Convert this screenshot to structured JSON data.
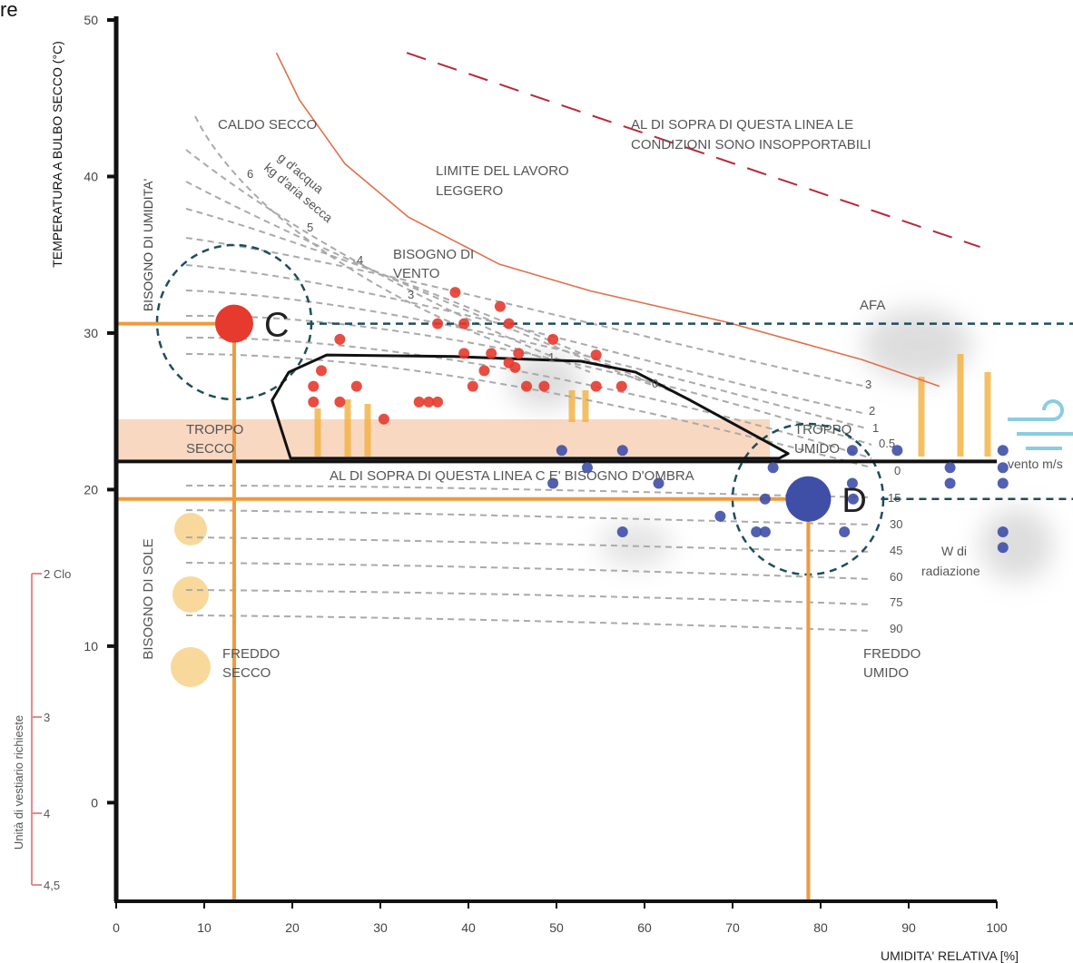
{
  "chart_data": {
    "type": "scatter",
    "y_axis_title": "TEMPERATURA A BULBO SECCO (°C)",
    "x_axis_title": "UMIDITA' RELATIVA [%]",
    "xlim": [
      0,
      100
    ],
    "ylim": [
      -6.3,
      50
    ],
    "xticks": [
      0,
      10,
      20,
      30,
      40,
      50,
      60,
      70,
      80,
      90,
      100
    ],
    "yticks": [
      0,
      10,
      20,
      30,
      40,
      50
    ],
    "series": [
      {
        "color": "#e63a2e",
        "x": [
          38.5,
          43.6,
          36.5,
          39.5,
          44.6,
          25.4,
          49.6,
          39.5,
          42.6,
          45.7,
          54.5,
          44.6,
          45.3,
          23.3,
          41.8,
          22.4,
          27.3,
          46.6,
          48.6,
          54.5,
          57.4,
          40.5,
          22.4,
          25.4,
          34.4,
          35.5,
          36.5,
          30.4
        ],
        "y": [
          32.6,
          31.7,
          30.6,
          30.6,
          30.6,
          29.6,
          29.6,
          28.7,
          28.7,
          28.7,
          28.6,
          28.1,
          27.8,
          27.6,
          27.6,
          26.6,
          26.6,
          26.6,
          26.6,
          26.6,
          26.6,
          26.6,
          25.6,
          25.6,
          25.6,
          25.6,
          25.6,
          24.5
        ]
      },
      {
        "color": "#3f4fa8",
        "x": [
          50.6,
          57.5,
          83.6,
          88.7,
          100.7,
          53.5,
          74.6,
          94.7,
          100.7,
          49.6,
          61.6,
          83.6,
          94.7,
          100.7,
          73.7,
          83.7,
          68.6,
          57.5,
          72.7,
          73.7,
          82.7,
          100.7,
          100.7
        ],
        "y": [
          22.5,
          22.5,
          22.5,
          22.5,
          22.5,
          21.4,
          21.4,
          21.4,
          21.4,
          20.4,
          20.4,
          20.4,
          20.4,
          20.4,
          19.4,
          19.4,
          18.3,
          17.3,
          17.3,
          17.3,
          17.3,
          17.3,
          16.3
        ]
      }
    ],
    "points": [
      {
        "label": "C",
        "x": 13.4,
        "y": 30.6,
        "color": "#e63a2e"
      },
      {
        "label": "D",
        "x": 78.6,
        "y": 19.4,
        "color": "#3f4fa8"
      }
    ],
    "curves": [
      {
        "color": "#e0704a",
        "style": "solid",
        "x": [
          18.2,
          20.8,
          26.0,
          33.2,
          43.5,
          53.8,
          69.3,
          84.7,
          93.5
        ],
        "y": [
          47.9,
          44.9,
          40.8,
          37.4,
          34.4,
          32.7,
          30.7,
          28.3,
          26.6
        ]
      },
      {
        "color": "#b8283c",
        "style": "dashed",
        "x": [
          33.0,
          98.1
        ],
        "y": [
          47.9,
          35.5
        ]
      }
    ],
    "comfort_zone": {
      "color": "#111111",
      "x": [
        19.8,
        17.7,
        19.6,
        23.9,
        38.4,
        52.8,
        59.0,
        65.2,
        72.4,
        76.3,
        75.3
      ],
      "y": [
        22.0,
        25.7,
        27.5,
        28.6,
        28.5,
        28.2,
        27.5,
        25.7,
        23.5,
        22.3,
        22.0
      ]
    },
    "shade_line": 21.8,
    "annotations": [
      "re",
      "CALDO SECCO",
      "AL DI SOPRA DI QUESTA LINEA LE",
      "CONDIZIONI SONO INSOPPORTABILI",
      "LIMITE DEL LAVORO",
      "LEGGERO",
      "BISOGNO DI",
      "VENTO",
      "AFA",
      "TROPPO",
      "SECCO",
      "TROPPO",
      "UMIDO",
      "AL DI SOPRA DI QUESTA LINEA C E' BISOGNO D'OMBRA",
      "FREDDO",
      "SECCO",
      "FREDDO",
      "UMIDO",
      "W di",
      "radiazione",
      "vento m/s",
      "g d'acqua",
      "kg d'aria secca",
      "BISOGNO DI UMIDITA'",
      "BISOGNO DI SOLE",
      "6",
      "5",
      "4",
      "3",
      "1",
      "0",
      "3",
      "2",
      "1",
      "0.5",
      "0",
      "15",
      "30",
      "45",
      "60",
      "75",
      "90"
    ],
    "clothing_scale": {
      "title": "Unità di vestiario richieste",
      "labels": [
        "2 Clo",
        "3",
        "4",
        "4,5"
      ]
    }
  }
}
